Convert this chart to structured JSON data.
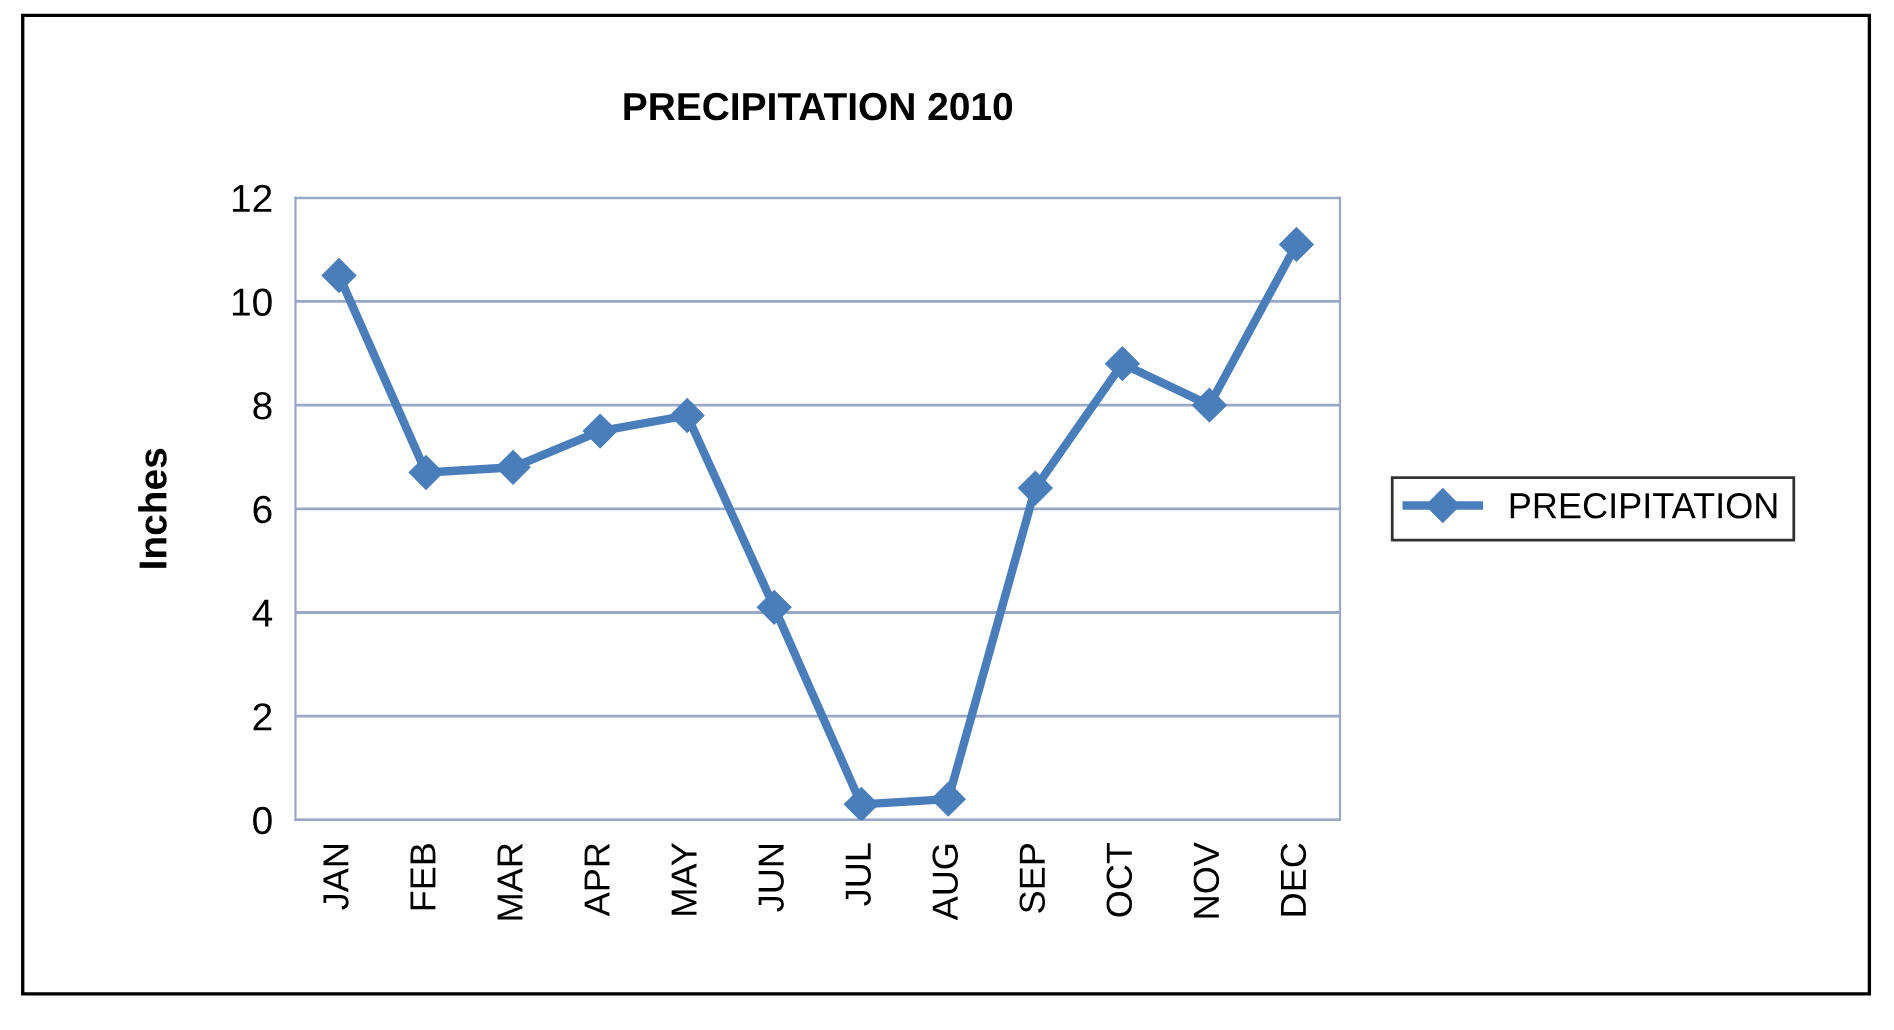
{
  "chart_data": {
    "type": "line",
    "title": "PRECIPITATION 2010",
    "ylabel": "Inches",
    "categories": [
      "JAN",
      "FEB",
      "MAR",
      "APR",
      "MAY",
      "JUN",
      "JUL",
      "AUG",
      "SEP",
      "OCT",
      "NOV",
      "DEC"
    ],
    "series": [
      {
        "name": "PRECIPITATION",
        "color": "#4a7ebb",
        "values": [
          10.5,
          6.7,
          6.8,
          7.5,
          7.8,
          4.1,
          0.3,
          0.4,
          6.4,
          8.8,
          8.0,
          11.1
        ]
      }
    ],
    "ylim": [
      0,
      12
    ],
    "yticks": [
      0,
      2,
      4,
      6,
      8,
      10,
      12
    ],
    "grid": "y",
    "legend": "right",
    "marker": "diamond",
    "line_style": "solid"
  }
}
